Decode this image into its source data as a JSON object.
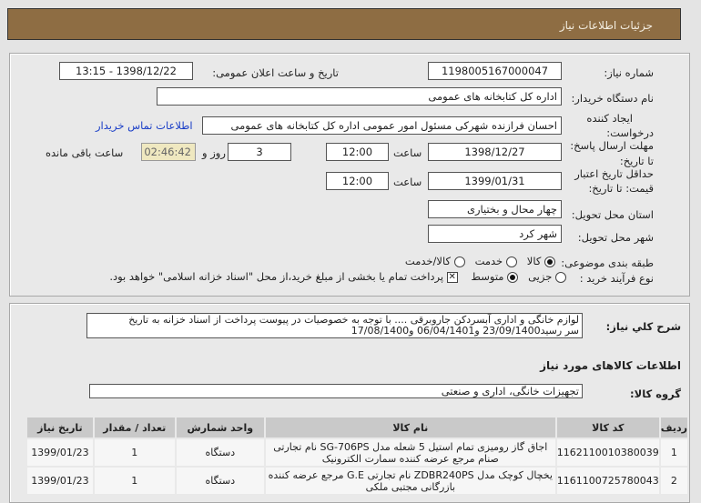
{
  "header": {
    "title": "جزئیات اطلاعات نیاز"
  },
  "form": {
    "need_number_label": "شماره نیاز:",
    "need_number": "1198005167000047",
    "announce_label": "تاریخ و ساعت اعلان عمومی:",
    "announce_value": "1398/12/22 - 13:15",
    "buyer_label": "نام دستگاه خریدار:",
    "buyer": "اداره کل کتابخانه های عمومی",
    "creator_label_1": "ایجاد کننده",
    "creator_label_2": "درخواست:",
    "creator": "احسان فرازنده شهرکی مسئول امور عمومی اداره کل کتابخانه های عمومی",
    "contact_link": "اطلاعات تماس خریدار",
    "deadline_label_1": "مهلت ارسال پاسخ:",
    "deadline_label_2": "تا تاریخ:",
    "deadline_date": "1398/12/27",
    "time_label": "ساعت",
    "deadline_time": "12:00",
    "days": "3",
    "days_label": "روز و",
    "remaining": "02:46:42",
    "remaining_label": "ساعت باقی مانده",
    "validity_label_1": "حداقل تاریخ اعتبار",
    "validity_label_2": "قیمت: تا تاریخ:",
    "validity_date": "1399/01/31",
    "validity_time": "12:00",
    "province_label": "استان محل تحویل:",
    "province": "چهار محال و بختیاری",
    "city_label": "شهر محل تحویل:",
    "city": "شهر کرد",
    "category_label": "طبقه بندی موضوعی:",
    "category_options": [
      "کالا",
      "خدمت",
      "کالا/خدمت"
    ],
    "category_selected": "کالا",
    "process_label": "نوع فرآیند خرید :",
    "process_options": [
      "جزیی",
      "متوسط"
    ],
    "process_selected": "متوسط",
    "payment_note": "پرداخت تمام یا بخشی از مبلغ خرید،از محل \"اسناد خزانه اسلامی\" خواهد بود.",
    "payment_checked": true
  },
  "description": {
    "label": "شرح کلي نیاز:",
    "line1": "لوازم خانگی و اداری آبسردکن جاروبرقی .... با توجه به خصوصیات در پیوست پرداخت از اسناد خزانه به تاریخ",
    "line2": "سر رسید23/09/1400 و06/04/1401 و17/08/1400"
  },
  "goods": {
    "section_title": "اطلاعات کالاهای مورد نیاز",
    "group_label": "گروه کالا:",
    "group": "تجهیزات خانگی، اداری و صنعتی",
    "columns": [
      "ردیف",
      "کد کالا",
      "نام کالا",
      "واحد شمارش",
      "تعداد / مقدار",
      "تاریخ نیاز"
    ],
    "rows": [
      {
        "n": "1",
        "code": "1162110010380039",
        "name": "اجاق گاز رومیزی تمام استیل 5 شعله مدل SG-706PS نام تجارتی صنام مرجع عرضه کننده سمارت الکترونیک",
        "unit": "دستگاه",
        "qty": "1",
        "date": "1399/01/23"
      },
      {
        "n": "2",
        "code": "1161100725780043",
        "name": "یخچال کوچک مدل ZDBR240PS نام تجارتی G.E مرجع عرضه کننده بازرگانی مجتبی ملکی",
        "unit": "دستگاه",
        "qty": "1",
        "date": "1399/01/23"
      }
    ]
  }
}
